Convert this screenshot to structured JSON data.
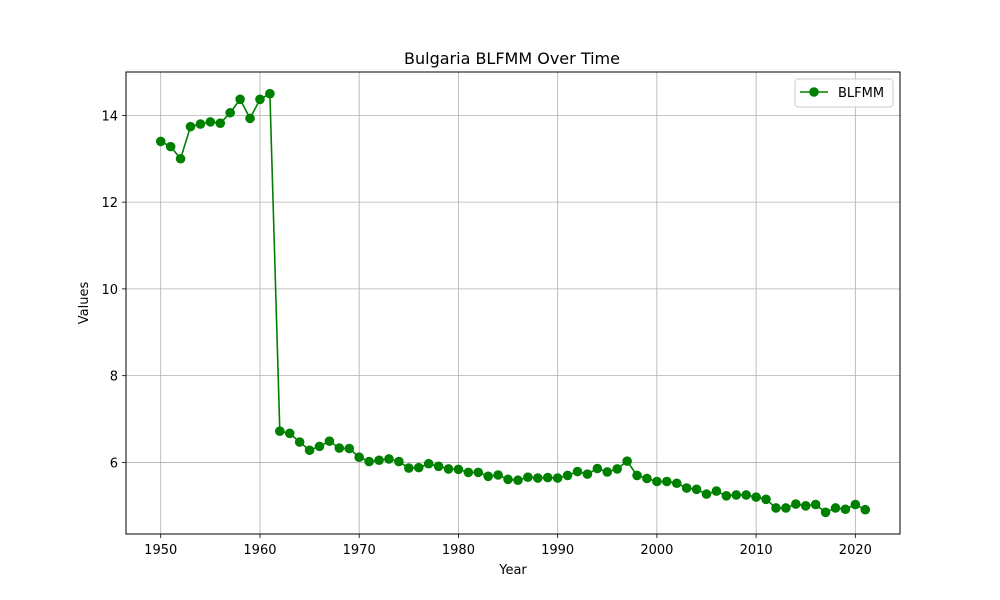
{
  "chart_data": {
    "type": "line",
    "title": "Bulgaria BLFMM Over Time",
    "xlabel": "Year",
    "ylabel": "Values",
    "xlim": [
      1946.5,
      2024.5
    ],
    "ylim": [
      4.35,
      15.0
    ],
    "xticks": [
      "1950",
      "1960",
      "1970",
      "1980",
      "1990",
      "2000",
      "2010",
      "2020"
    ],
    "yticks": [
      "6",
      "8",
      "10",
      "12",
      "14"
    ],
    "grid": true,
    "legend_position": "top-right",
    "series": [
      {
        "name": "BLFMM",
        "color": "#008000",
        "marker": "circle",
        "x": [
          1950,
          1951,
          1952,
          1953,
          1954,
          1955,
          1956,
          1957,
          1958,
          1959,
          1960,
          1961,
          1962,
          1963,
          1964,
          1965,
          1966,
          1967,
          1968,
          1969,
          1970,
          1971,
          1972,
          1973,
          1974,
          1975,
          1976,
          1977,
          1978,
          1979,
          1980,
          1981,
          1982,
          1983,
          1984,
          1985,
          1986,
          1987,
          1988,
          1989,
          1990,
          1991,
          1992,
          1993,
          1994,
          1995,
          1996,
          1997,
          1998,
          1999,
          2000,
          2001,
          2002,
          2003,
          2004,
          2005,
          2006,
          2007,
          2008,
          2009,
          2010,
          2011,
          2012,
          2013,
          2014,
          2015,
          2016,
          2017,
          2018,
          2019,
          2020,
          2021
        ],
        "y": [
          13.4,
          13.28,
          13.0,
          13.74,
          13.8,
          13.85,
          13.82,
          14.06,
          14.37,
          13.93,
          14.37,
          14.5,
          6.72,
          6.67,
          6.47,
          6.28,
          6.37,
          6.49,
          6.33,
          6.32,
          6.12,
          6.02,
          6.05,
          6.08,
          6.02,
          5.87,
          5.88,
          5.97,
          5.91,
          5.85,
          5.84,
          5.77,
          5.77,
          5.68,
          5.71,
          5.61,
          5.59,
          5.66,
          5.64,
          5.65,
          5.64,
          5.7,
          5.79,
          5.73,
          5.86,
          5.78,
          5.85,
          6.03,
          5.7,
          5.63,
          5.56,
          5.56,
          5.52,
          5.41,
          5.38,
          5.27,
          5.34,
          5.23,
          5.25,
          5.25,
          5.2,
          5.15,
          4.95,
          4.95,
          5.04,
          5.0,
          5.03,
          4.85,
          4.95,
          4.92,
          5.03,
          4.91
        ]
      }
    ]
  }
}
